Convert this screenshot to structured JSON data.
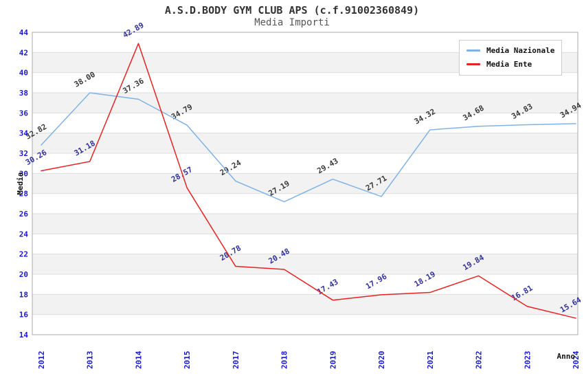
{
  "title": "A.S.D.BODY GYM CLUB APS (c.f.91002360849)",
  "subtitle": "Media Importi",
  "axes": {
    "y_label": "Media",
    "x_label": "Anno"
  },
  "colors": {
    "nazionale_line": "#7FB2E5",
    "ente_line": "#E62222",
    "tick_label": "#1A1ACC",
    "band_fill": "#F2F2F2",
    "grid_line": "#DDDDDD",
    "plot_border": "#AAAAAA",
    "title_text": "#333333",
    "subtitle_text": "#555555",
    "legend_text": "#111111",
    "legend_border": "#CCCCCC"
  },
  "chart_data": {
    "type": "line",
    "title": "A.S.D.BODY GYM CLUB APS (c.f.91002360849)",
    "subtitle": "Media Importi",
    "xlabel": "Anno",
    "ylabel": "Media",
    "categories": [
      "2012",
      "2013",
      "2014",
      "2015",
      "2017",
      "2018",
      "2019",
      "2020",
      "2021",
      "2022",
      "2023",
      "2024"
    ],
    "series": [
      {
        "name": "Media Nazionale",
        "color_key": "nazionale_line",
        "label_color": "#3A3A3A",
        "values": [
          32.82,
          38.0,
          37.36,
          34.79,
          29.24,
          27.19,
          29.43,
          27.71,
          34.32,
          34.68,
          34.83,
          34.94
        ]
      },
      {
        "name": "Media Ente",
        "color_key": "ente_line",
        "label_color": "#333399",
        "values": [
          30.26,
          31.18,
          42.89,
          28.57,
          20.78,
          20.48,
          17.43,
          17.96,
          18.19,
          19.84,
          16.81,
          15.64
        ]
      }
    ],
    "ylim": [
      14,
      44
    ],
    "ytick_step": 2,
    "yticks": [
      14,
      16,
      18,
      20,
      22,
      24,
      26,
      28,
      30,
      32,
      34,
      36,
      38,
      40,
      42,
      44
    ],
    "grid": "horizontal-alternating-bands",
    "legend_position": "top-right",
    "data_labels": "two-decimals-rotated-30deg",
    "x_tick_rotation": -90
  }
}
